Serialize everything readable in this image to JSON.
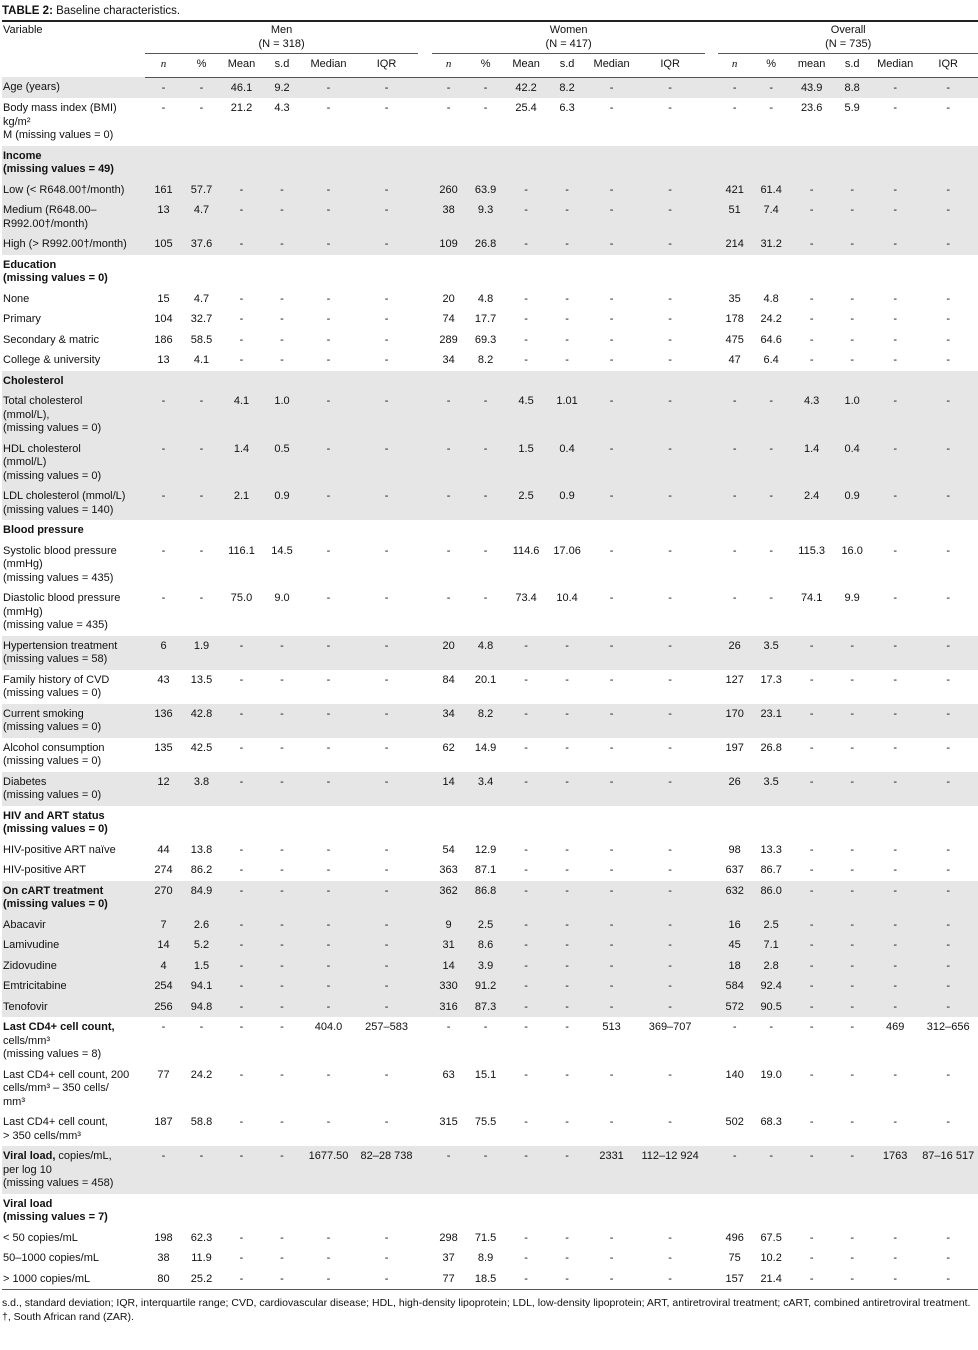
{
  "title": {
    "label": "TABLE 2:",
    "text": " Baseline characteristics."
  },
  "header": {
    "variable": "Variable",
    "groups": [
      {
        "name": "Men",
        "n": "(N = 318)"
      },
      {
        "name": "Women",
        "n": "(N = 417)"
      },
      {
        "name": "Overall",
        "n": "(N = 735)"
      }
    ],
    "sub": [
      [
        "n",
        "%",
        "Mean",
        "s.d",
        "Median",
        "IQR"
      ],
      [
        "n",
        "%",
        "Mean",
        "s.d",
        "Median",
        "IQR"
      ],
      [
        "n",
        "%",
        "mean",
        "s.d",
        "Median",
        "IQR"
      ]
    ]
  },
  "rows": [
    {
      "s": 1,
      "l": [
        "Age (years)"
      ],
      "c": [
        "-",
        "-",
        "46.1",
        "9.2",
        "-",
        "-",
        "-",
        "-",
        "42.2",
        "8.2",
        "-",
        "-",
        "-",
        "-",
        "43.9",
        "8.8",
        "-",
        "-"
      ]
    },
    {
      "s": 0,
      "l": [
        "Body mass index (BMI)",
        "kg/m²",
        "M (missing values = 0)"
      ],
      "c": [
        "-",
        "-",
        "21.2",
        "4.3",
        "-",
        "-",
        "-",
        "-",
        "25.4",
        "6.3",
        "-",
        "-",
        "-",
        "-",
        "23.6",
        "5.9",
        "-",
        "-"
      ]
    },
    {
      "s": 1,
      "b": 2,
      "l": [
        "Income",
        "(missing values = 49)"
      ],
      "c": []
    },
    {
      "s": 1,
      "l": [
        "Low (< R648.00†/month)"
      ],
      "c": [
        "161",
        "57.7",
        "-",
        "-",
        "-",
        "-",
        "260",
        "63.9",
        "-",
        "-",
        "-",
        "-",
        "421",
        "61.4",
        "-",
        "-",
        "-",
        "-"
      ]
    },
    {
      "s": 1,
      "l": [
        "Medium (R648.00–",
        "R992.00†/month)"
      ],
      "c": [
        "13",
        "4.7",
        "-",
        "-",
        "-",
        "-",
        "38",
        "9.3",
        "-",
        "-",
        "-",
        "-",
        "51",
        "7.4",
        "-",
        "-",
        "-",
        "-"
      ]
    },
    {
      "s": 1,
      "l": [
        "High (> R992.00†/month)"
      ],
      "c": [
        "105",
        "37.6",
        "-",
        "-",
        "-",
        "-",
        "109",
        "26.8",
        "-",
        "-",
        "-",
        "-",
        "214",
        "31.2",
        "-",
        "-",
        "-",
        "-"
      ]
    },
    {
      "s": 0,
      "b": 2,
      "l": [
        "Education",
        "(missing values = 0)"
      ],
      "c": []
    },
    {
      "s": 0,
      "l": [
        "None"
      ],
      "c": [
        "15",
        "4.7",
        "-",
        "-",
        "-",
        "-",
        "20",
        "4.8",
        "-",
        "-",
        "-",
        "-",
        "35",
        "4.8",
        "-",
        "-",
        "-",
        "-"
      ]
    },
    {
      "s": 0,
      "l": [
        "Primary"
      ],
      "c": [
        "104",
        "32.7",
        "-",
        "-",
        "-",
        "-",
        "74",
        "17.7",
        "-",
        "-",
        "-",
        "-",
        "178",
        "24.2",
        "-",
        "-",
        "-",
        "-"
      ]
    },
    {
      "s": 0,
      "l": [
        "Secondary & matric"
      ],
      "c": [
        "186",
        "58.5",
        "-",
        "-",
        "-",
        "-",
        "289",
        "69.3",
        "-",
        "-",
        "-",
        "-",
        "475",
        "64.6",
        "-",
        "-",
        "-",
        "-"
      ]
    },
    {
      "s": 0,
      "l": [
        "College & university"
      ],
      "c": [
        "13",
        "4.1",
        "-",
        "-",
        "-",
        "-",
        "34",
        "8.2",
        "-",
        "-",
        "-",
        "-",
        "47",
        "6.4",
        "-",
        "-",
        "-",
        "-"
      ]
    },
    {
      "s": 1,
      "b": 1,
      "l": [
        "Cholesterol"
      ],
      "c": []
    },
    {
      "s": 1,
      "l": [
        "Total cholesterol",
        "(mmol/L),",
        "(missing values = 0)"
      ],
      "c": [
        "-",
        "-",
        "4.1",
        "1.0",
        "-",
        "-",
        "-",
        "-",
        "4.5",
        "1.01",
        "-",
        "-",
        "-",
        "-",
        "4.3",
        "1.0",
        "-",
        "-"
      ]
    },
    {
      "s": 1,
      "l": [
        "HDL cholesterol",
        "(mmol/L)",
        "(missing values = 0)"
      ],
      "c": [
        "-",
        "-",
        "1.4",
        "0.5",
        "-",
        "-",
        "-",
        "-",
        "1.5",
        "0.4",
        "-",
        "-",
        "-",
        "-",
        "1.4",
        "0.4",
        "-",
        "-"
      ]
    },
    {
      "s": 1,
      "l": [
        "LDL cholesterol (mmol/L)",
        "(missing values = 140)"
      ],
      "c": [
        "-",
        "-",
        "2.1",
        "0.9",
        "-",
        "-",
        "-",
        "-",
        "2.5",
        "0.9",
        "-",
        "-",
        "-",
        "-",
        "2.4",
        "0.9",
        "-",
        "-"
      ]
    },
    {
      "s": 0,
      "b": 1,
      "l": [
        "Blood pressure"
      ],
      "c": []
    },
    {
      "s": 0,
      "l": [
        "Systolic blood pressure",
        "(mmHg)",
        "(missing values = 435)"
      ],
      "c": [
        "-",
        "-",
        "116.1",
        "14.5",
        "-",
        "-",
        "-",
        "-",
        "114.6",
        "17.06",
        "-",
        "-",
        "-",
        "-",
        "115.3",
        "16.0",
        "-",
        "-"
      ]
    },
    {
      "s": 0,
      "l": [
        "Diastolic blood pressure",
        "(mmHg)",
        "(missing value = 435)"
      ],
      "c": [
        "-",
        "-",
        "75.0",
        "9.0",
        "-",
        "-",
        "-",
        "-",
        "73.4",
        "10.4",
        "-",
        "-",
        "-",
        "-",
        "74.1",
        "9.9",
        "-",
        "-"
      ]
    },
    {
      "s": 1,
      "l": [
        "Hypertension treatment",
        "(missing values = 58)"
      ],
      "c": [
        "6",
        "1.9",
        "-",
        "-",
        "-",
        "-",
        "20",
        "4.8",
        "-",
        "-",
        "-",
        "-",
        "26",
        "3.5",
        "-",
        "-",
        "-",
        "-"
      ]
    },
    {
      "s": 0,
      "l": [
        "Family history of CVD",
        "(missing values = 0)"
      ],
      "c": [
        "43",
        "13.5",
        "-",
        "-",
        "-",
        "-",
        "84",
        "20.1",
        "-",
        "-",
        "-",
        "-",
        "127",
        "17.3",
        "-",
        "-",
        "-",
        "-"
      ]
    },
    {
      "s": 1,
      "l": [
        "Current smoking",
        "(missing values = 0)"
      ],
      "c": [
        "136",
        "42.8",
        "-",
        "-",
        "-",
        "-",
        "34",
        "8.2",
        "-",
        "-",
        "-",
        "-",
        "170",
        "23.1",
        "-",
        "-",
        "-",
        "-"
      ]
    },
    {
      "s": 0,
      "l": [
        "Alcohol consumption",
        "(missing values = 0)"
      ],
      "c": [
        "135",
        "42.5",
        "-",
        "-",
        "-",
        "-",
        "62",
        "14.9",
        "-",
        "-",
        "-",
        "-",
        "197",
        "26.8",
        "-",
        "-",
        "-",
        "-"
      ]
    },
    {
      "s": 1,
      "l": [
        "Diabetes",
        "(missing values = 0)"
      ],
      "c": [
        "12",
        "3.8",
        "-",
        "-",
        "-",
        "-",
        "14",
        "3.4",
        "-",
        "-",
        "-",
        "-",
        "26",
        "3.5",
        "-",
        "-",
        "-",
        "-"
      ]
    },
    {
      "s": 0,
      "b": 2,
      "l": [
        "HIV and ART status",
        "(missing values = 0)"
      ],
      "c": []
    },
    {
      "s": 0,
      "l": [
        "HIV-positive ART naïve"
      ],
      "c": [
        "44",
        "13.8",
        "-",
        "-",
        "-",
        "-",
        "54",
        "12.9",
        "-",
        "-",
        "-",
        "-",
        "98",
        "13.3",
        "-",
        "-",
        "-",
        "-"
      ]
    },
    {
      "s": 0,
      "l": [
        "HIV-positive ART"
      ],
      "c": [
        "274",
        "86.2",
        "-",
        "-",
        "-",
        "-",
        "363",
        "87.1",
        "-",
        "-",
        "-",
        "-",
        "637",
        "86.7",
        "-",
        "-",
        "-",
        "-"
      ]
    },
    {
      "s": 1,
      "b": 2,
      "l": [
        "On cART treatment",
        "(missing values = 0)"
      ],
      "c": [
        "270",
        "84.9",
        "-",
        "-",
        "-",
        "-",
        "362",
        "86.8",
        "-",
        "-",
        "-",
        "-",
        "632",
        "86.0",
        "-",
        "-",
        "-",
        "-"
      ]
    },
    {
      "s": 1,
      "l": [
        "Abacavir"
      ],
      "c": [
        "7",
        "2.6",
        "-",
        "-",
        "-",
        "-",
        "9",
        "2.5",
        "-",
        "-",
        "-",
        "-",
        "16",
        "2.5",
        "-",
        "-",
        "-",
        "-"
      ]
    },
    {
      "s": 1,
      "l": [
        "Lamivudine"
      ],
      "c": [
        "14",
        "5.2",
        "-",
        "-",
        "-",
        "-",
        "31",
        "8.6",
        "-",
        "-",
        "-",
        "-",
        "45",
        "7.1",
        "-",
        "-",
        "-",
        "-"
      ]
    },
    {
      "s": 1,
      "l": [
        "Zidovudine"
      ],
      "c": [
        "4",
        "1.5",
        "-",
        "-",
        "-",
        "-",
        "14",
        "3.9",
        "-",
        "-",
        "-",
        "-",
        "18",
        "2.8",
        "-",
        "-",
        "-",
        "-"
      ]
    },
    {
      "s": 1,
      "l": [
        "Emtricitabine"
      ],
      "c": [
        "254",
        "94.1",
        "-",
        "-",
        "-",
        "-",
        "330",
        "91.2",
        "-",
        "-",
        "-",
        "-",
        "584",
        "92.4",
        "-",
        "-",
        "-",
        "-"
      ]
    },
    {
      "s": 1,
      "l": [
        "Tenofovir"
      ],
      "c": [
        "256",
        "94.8",
        "-",
        "-",
        "-",
        "-",
        "316",
        "87.3",
        "-",
        "-",
        "-",
        "-",
        "572",
        "90.5",
        "-",
        "-",
        "-",
        "-"
      ]
    },
    {
      "s": 0,
      "b": 1,
      "l": [
        "Last CD4+ cell count,",
        "cells/mm³",
        "(missing values = 8)"
      ],
      "c": [
        "-",
        "-",
        "-",
        "-",
        "404.0",
        "257–583",
        "-",
        "-",
        "-",
        "-",
        "513",
        "369–707",
        "-",
        "-",
        "-",
        "-",
        "469",
        "312–656"
      ]
    },
    {
      "s": 0,
      "l": [
        "Last CD4+ cell count, 200",
        "cells/mm³ – 350 cells/",
        "mm³"
      ],
      "c": [
        "77",
        "24.2",
        "-",
        "-",
        "-",
        "-",
        "63",
        "15.1",
        "-",
        "-",
        "-",
        "-",
        "140",
        "19.0",
        "-",
        "-",
        "-",
        "-"
      ]
    },
    {
      "s": 0,
      "l": [
        "Last CD4+ cell count,",
        "> 350 cells/mm³"
      ],
      "c": [
        "187",
        "58.8",
        "-",
        "-",
        "-",
        "-",
        "315",
        "75.5",
        "-",
        "-",
        "-",
        "-",
        "502",
        "68.3",
        "-",
        "-",
        "-",
        "-"
      ]
    },
    {
      "s": 1,
      "l": [
        [
          "Viral load,",
          " copies/mL,"
        ],
        "per log 10",
        "(missing values = 458)"
      ],
      "c": [
        "-",
        "-",
        "-",
        "-",
        "1677.50",
        "82–28 738",
        "-",
        "-",
        "-",
        "-",
        "2331",
        "112–12 924",
        "-",
        "-",
        "-",
        "-",
        "1763",
        "87–16 517"
      ]
    },
    {
      "s": 0,
      "b": 2,
      "l": [
        "Viral load",
        "(missing values = 7)"
      ],
      "c": []
    },
    {
      "s": 0,
      "l": [
        "< 50 copies/mL"
      ],
      "c": [
        "198",
        "62.3",
        "-",
        "-",
        "-",
        "-",
        "298",
        "71.5",
        "-",
        "-",
        "-",
        "-",
        "496",
        "67.5",
        "-",
        "-",
        "-",
        "-"
      ]
    },
    {
      "s": 0,
      "l": [
        "50–1000 copies/mL"
      ],
      "c": [
        "38",
        "11.9",
        "-",
        "-",
        "-",
        "-",
        "37",
        "8.9",
        "-",
        "-",
        "-",
        "-",
        "75",
        "10.2",
        "-",
        "-",
        "-",
        "-"
      ]
    },
    {
      "s": 0,
      "l": [
        "> 1000 copies/mL"
      ],
      "c": [
        "80",
        "25.2",
        "-",
        "-",
        "-",
        "-",
        "77",
        "18.5",
        "-",
        "-",
        "-",
        "-",
        "157",
        "21.4",
        "-",
        "-",
        "-",
        "-"
      ]
    }
  ],
  "footnotes": [
    "s.d., standard deviation; IQR, interquartile range; CVD, cardiovascular disease; HDL, high-density lipoprotein; LDL, low-density lipoprotein; ART, antiretroviral treatment; cART, combined antiretroviral treatment.",
    "†, South African rand (ZAR)."
  ]
}
